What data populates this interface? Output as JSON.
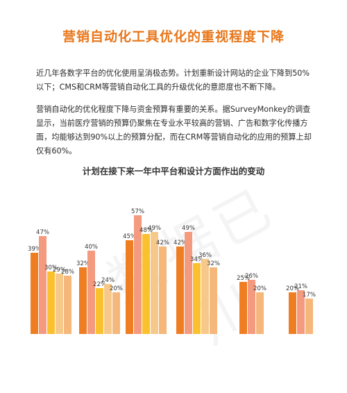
{
  "title": "营销自动化工具优化的重视程度下降",
  "paragraphs": [
    "近几年各数字平台的优化使用呈消极态势。计划重新设计网站的企业下降到50%以下；CMS和CRM等营销自动化工具的升级优化的意愿度也不断下降。",
    "营销自动化的优化程度下降与资金预算有重要的关系。据SurveyMonkey的调查显示，当前医疗营销的预算仍聚焦在专业水平较高的营销、广告和数字化传播方面，均能够达到90%以上的预算分配，而在CRM等营销自动化的应用的预算上却仅有60%。"
  ],
  "watermark": "数据已川",
  "chart_data": {
    "type": "bar",
    "title": "计划在接下来一年中平台和设计方面作出的变动",
    "groups": 6,
    "series": [
      {
        "color": "#ef7d22",
        "values": [
          39,
          32,
          45,
          42,
          25,
          20
        ]
      },
      {
        "color": "#f39a7f",
        "values": [
          47,
          40,
          57,
          49,
          26,
          21
        ]
      },
      {
        "color": "#fbc02d",
        "values": [
          30,
          22,
          48,
          34,
          null,
          null
        ]
      },
      {
        "color": "#f6c98a",
        "values": [
          29,
          24,
          49,
          36,
          null,
          null
        ]
      },
      {
        "color": "#f5b77a",
        "values": [
          28,
          20,
          42,
          32,
          20,
          17
        ]
      }
    ],
    "value_suffix": "%"
  }
}
